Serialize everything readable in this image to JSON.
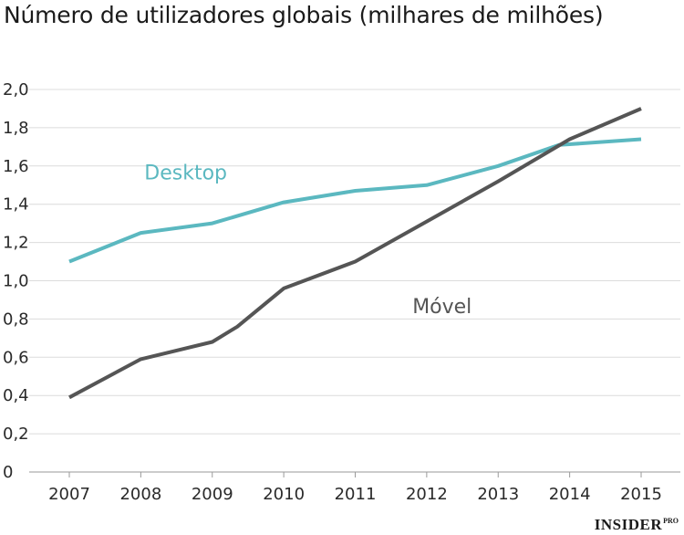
{
  "chart_data": {
    "type": "line",
    "title": "Número de utilizadores globais (milhares de milhões)",
    "xlabel": "",
    "ylabel": "",
    "categories": [
      "2007",
      "2008",
      "2009",
      "2010",
      "2011",
      "2012",
      "2013",
      "2014",
      "2015"
    ],
    "y_ticks": [
      "0",
      "0,2",
      "0,4",
      "0,6",
      "0,8",
      "1,0",
      "1,2",
      "1,4",
      "1,6",
      "1,8",
      "2,0"
    ],
    "ylim": [
      0,
      2.0
    ],
    "grid": true,
    "series": [
      {
        "name": "Desktop",
        "color": "#5bb8c0",
        "points": [
          {
            "x": 2007.0,
            "y": 1.1
          },
          {
            "x": 2008.0,
            "y": 1.25
          },
          {
            "x": 2009.0,
            "y": 1.3
          },
          {
            "x": 2010.0,
            "y": 1.41
          },
          {
            "x": 2011.0,
            "y": 1.47
          },
          {
            "x": 2012.0,
            "y": 1.5
          },
          {
            "x": 2013.0,
            "y": 1.6
          },
          {
            "x": 2013.85,
            "y": 1.71
          },
          {
            "x": 2015.0,
            "y": 1.74
          }
        ]
      },
      {
        "name": "Móvel",
        "color": "#555555",
        "points": [
          {
            "x": 2007.0,
            "y": 0.39
          },
          {
            "x": 2008.0,
            "y": 0.59
          },
          {
            "x": 2009.0,
            "y": 0.68
          },
          {
            "x": 2009.35,
            "y": 0.76
          },
          {
            "x": 2010.0,
            "y": 0.96
          },
          {
            "x": 2011.0,
            "y": 1.1
          },
          {
            "x": 2012.0,
            "y": 1.31
          },
          {
            "x": 2013.0,
            "y": 1.52
          },
          {
            "x": 2014.0,
            "y": 1.74
          },
          {
            "x": 2015.0,
            "y": 1.9
          }
        ]
      }
    ],
    "annotations": [
      {
        "series": "Desktop",
        "text": "Desktop",
        "x": 2008.05,
        "y": 1.53
      },
      {
        "series": "Móvel",
        "text": "Móvel",
        "x": 2011.8,
        "y": 0.83
      }
    ]
  },
  "watermark": {
    "brand": "INSIDER",
    "suffix": "PRO"
  }
}
